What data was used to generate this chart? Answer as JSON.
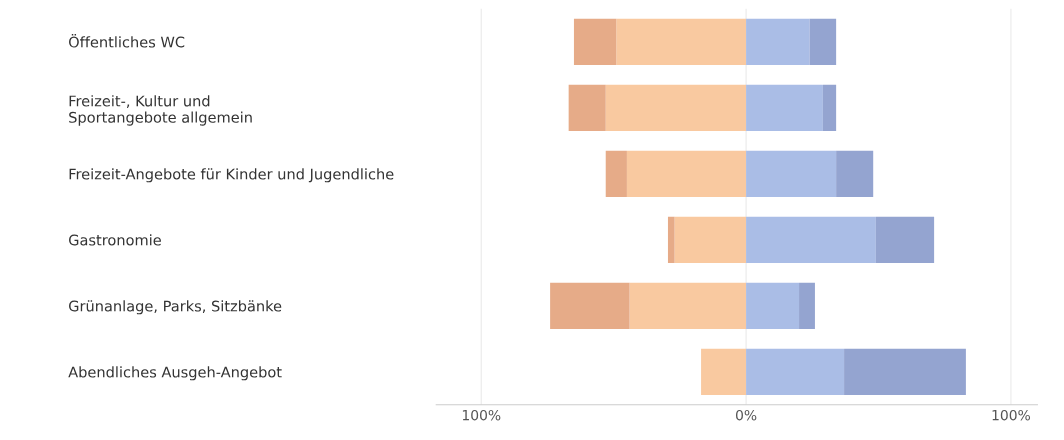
{
  "chart_data": {
    "type": "bar",
    "orientation": "horizontal",
    "stacked": true,
    "categories": [
      "Öffentliches WC",
      "Freizeit-, Kultur und\nSportangebote allgemein",
      "Freizeit-Angebote für Kinder und Jugendliche",
      "Gastronomie",
      "Grünanlage, Parks, Sitzbänke",
      "Abendliches Ausgeh-Angebot"
    ],
    "series": [
      {
        "color": "#f9c9a0",
        "values": [
          -49,
          -53,
          -45,
          -27,
          -44,
          -17
        ]
      },
      {
        "color": "#e6ab88",
        "values": [
          -16,
          -14,
          -8,
          -2.5,
          -30,
          0
        ]
      },
      {
        "color": "#aabde6",
        "values": [
          24,
          29,
          34,
          49,
          20,
          37
        ]
      },
      {
        "color": "#94a4d0",
        "values": [
          10,
          5,
          14,
          22,
          6,
          46
        ]
      }
    ],
    "xlim": [
      -117,
      110
    ],
    "xticks": [
      {
        "value": -100,
        "label": "100%"
      },
      {
        "value": 0,
        "label": "0%"
      },
      {
        "value": 100,
        "label": "100%"
      }
    ],
    "grid": "x",
    "legend": false
  }
}
